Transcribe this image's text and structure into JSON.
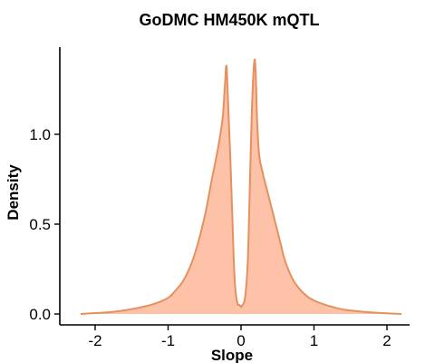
{
  "chart_data": {
    "type": "area",
    "title": "GoDMC HM450K mQTL",
    "xlabel": "Slope",
    "ylabel": "Density",
    "xlim": [
      -2.35,
      2.3
    ],
    "ylim": [
      -0.02,
      1.5
    ],
    "x_ticks": [
      -2,
      -1,
      0,
      1,
      2
    ],
    "x_tick_labels": [
      "-2",
      "-1",
      "0",
      "1",
      "2"
    ],
    "y_ticks": [
      0.0,
      0.5,
      1.0
    ],
    "y_tick_labels": [
      "0.0",
      "0.5",
      "1.0"
    ],
    "grid": false,
    "legend": "none",
    "fill_color": "#FDC2A7",
    "line_color": "#E4905F",
    "series": [
      {
        "x": [
          -2.2,
          -2.0,
          -1.8,
          -1.6,
          -1.4,
          -1.2,
          -1.0,
          -0.9,
          -0.8,
          -0.7,
          -0.6,
          -0.5,
          -0.45,
          -0.4,
          -0.35,
          -0.3,
          -0.25,
          -0.22,
          -0.2,
          -0.18,
          -0.15,
          -0.12,
          -0.1,
          -0.08,
          -0.05,
          -0.02,
          0.0,
          0.02,
          0.05,
          0.08,
          0.1,
          0.12,
          0.15,
          0.18,
          0.2,
          0.22,
          0.25,
          0.3,
          0.35,
          0.4,
          0.45,
          0.5,
          0.55,
          0.6,
          0.7,
          0.8,
          0.9,
          1.0,
          1.2,
          1.4,
          1.6,
          1.8,
          2.0,
          2.2
        ],
        "y": [
          0.0,
          0.005,
          0.01,
          0.02,
          0.035,
          0.055,
          0.09,
          0.13,
          0.18,
          0.26,
          0.38,
          0.54,
          0.64,
          0.75,
          0.85,
          0.96,
          1.1,
          1.28,
          1.38,
          1.2,
          0.9,
          0.55,
          0.3,
          0.15,
          0.06,
          0.05,
          0.04,
          0.05,
          0.08,
          0.2,
          0.38,
          0.7,
          1.15,
          1.4,
          1.35,
          1.08,
          0.88,
          0.78,
          0.7,
          0.62,
          0.54,
          0.46,
          0.38,
          0.3,
          0.2,
          0.14,
          0.1,
          0.075,
          0.045,
          0.025,
          0.015,
          0.008,
          0.004,
          0.0
        ]
      }
    ]
  }
}
